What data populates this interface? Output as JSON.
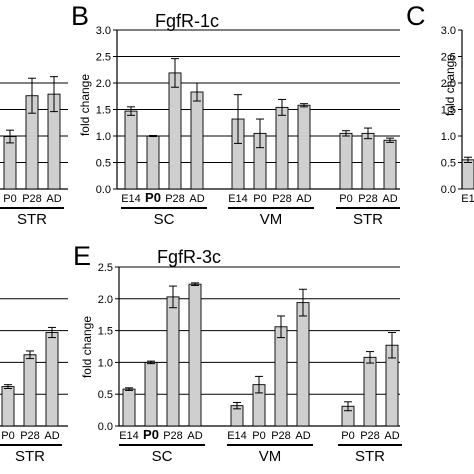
{
  "panel_letters": {
    "B": "B",
    "C": "C",
    "E": "E"
  },
  "chart_data": [
    {
      "id": "B",
      "type": "bar",
      "title": "FgfR-1c",
      "ylabel": "fold change",
      "ylim": [
        0,
        3.0
      ],
      "yticks": [
        "0.0",
        "0.5",
        "1.0",
        "1.5",
        "2.0",
        "2.5",
        "3.0"
      ],
      "grid": true,
      "bar_color": "#cfcfcf",
      "groups": [
        {
          "name": "SC",
          "categories": [
            "E14",
            "P0",
            "P28",
            "AD"
          ],
          "values": [
            1.47,
            1.0,
            2.19,
            1.83
          ],
          "errors": [
            0.08,
            0.01,
            0.27,
            0.17
          ]
        },
        {
          "name": "VM",
          "categories": [
            "E14",
            "P0",
            "P28",
            "AD"
          ],
          "values": [
            1.32,
            1.05,
            1.54,
            1.58
          ],
          "errors": [
            0.46,
            0.27,
            0.15,
            0.03
          ]
        },
        {
          "name": "STR",
          "categories": [
            "P0",
            "P28",
            "AD"
          ],
          "values": [
            1.05,
            1.05,
            0.92
          ],
          "errors": [
            0.05,
            0.1,
            0.04
          ]
        }
      ],
      "bold_categories": [
        "SC:P0"
      ]
    },
    {
      "id": "E",
      "type": "bar",
      "title": "FgfR-3c",
      "ylabel": "fold change",
      "ylim": [
        0,
        2.5
      ],
      "yticks": [
        "0.0",
        "0.5",
        "1.0",
        "1.5",
        "2.0",
        "2.5"
      ],
      "grid": true,
      "bar_color": "#cfcfcf",
      "groups": [
        {
          "name": "SC",
          "categories": [
            "E14",
            "P0",
            "P28",
            "AD"
          ],
          "values": [
            0.58,
            1.0,
            2.03,
            2.23
          ],
          "errors": [
            0.02,
            0.02,
            0.17,
            0.02
          ]
        },
        {
          "name": "VM",
          "categories": [
            "E14",
            "P0",
            "P28",
            "AD"
          ],
          "values": [
            0.32,
            0.65,
            1.56,
            1.94
          ],
          "errors": [
            0.05,
            0.13,
            0.17,
            0.21
          ]
        },
        {
          "name": "STR",
          "categories": [
            "P0",
            "P28",
            "AD"
          ],
          "values": [
            0.31,
            1.08,
            1.27
          ],
          "errors": [
            0.07,
            0.09,
            0.2
          ]
        }
      ],
      "bold_categories": [
        "SC:P0"
      ]
    },
    {
      "id": "A-partial",
      "type": "bar",
      "bar_color": "#cfcfcf",
      "groups": [
        {
          "name": "STR",
          "categories": [
            "P0",
            "P28",
            "AD"
          ],
          "values": [
            0.99,
            1.76,
            1.79
          ],
          "errors": [
            0.12,
            0.33,
            0.33
          ]
        }
      ]
    },
    {
      "id": "D-partial",
      "type": "bar",
      "bar_color": "#cfcfcf",
      "groups": [
        {
          "name": "STR",
          "categories": [
            "P0",
            "P28",
            "AD"
          ],
          "values": [
            0.62,
            1.12,
            1.47
          ],
          "errors": [
            0.03,
            0.06,
            0.08
          ]
        }
      ]
    },
    {
      "id": "C-partial",
      "type": "bar",
      "ylabel": "fold change",
      "yticks": [
        "0.0",
        "0.5",
        "1.0",
        "1.5",
        "2.0",
        "2.5",
        "3.0"
      ],
      "bar_color": "#cfcfcf",
      "groups": [
        {
          "name": "",
          "categories": [
            "E1"
          ],
          "values": [
            0.55
          ],
          "errors": [
            0.05
          ]
        }
      ]
    }
  ]
}
